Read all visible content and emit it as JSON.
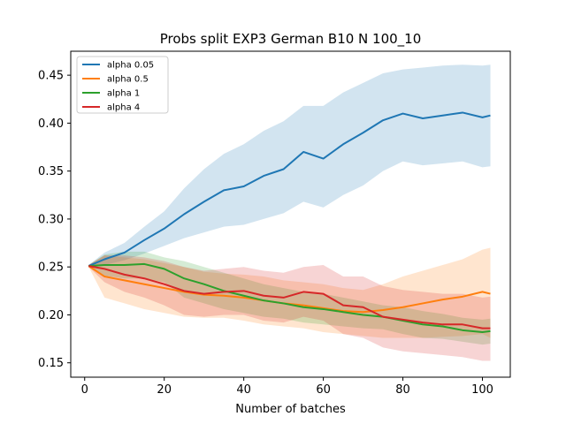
{
  "chart_data": {
    "type": "line",
    "title": "Probs split EXP3 German B10 N 100_10",
    "xlabel": "Number of batches",
    "ylabel": "",
    "xlim": [
      -3.5,
      107
    ],
    "ylim": [
      0.135,
      0.475
    ],
    "xticks": [
      0,
      20,
      40,
      60,
      80,
      100
    ],
    "yticks": [
      0.15,
      0.2,
      0.25,
      0.3,
      0.35,
      0.4,
      0.45
    ],
    "xtick_labels": [
      "0",
      "20",
      "40",
      "60",
      "80",
      "100"
    ],
    "ytick_labels": [
      "0.15",
      "0.20",
      "0.25",
      "0.30",
      "0.35",
      "0.40",
      "0.45"
    ],
    "grid": false,
    "legend_position": "top-left",
    "series": [
      {
        "name": "alpha 0.05",
        "color": "#1f77b4",
        "x": [
          1,
          5,
          10,
          15,
          20,
          25,
          30,
          35,
          40,
          45,
          50,
          55,
          60,
          65,
          70,
          75,
          80,
          85,
          90,
          95,
          100,
          102
        ],
        "mean": [
          0.251,
          0.258,
          0.265,
          0.278,
          0.29,
          0.305,
          0.318,
          0.33,
          0.334,
          0.345,
          0.352,
          0.37,
          0.363,
          0.378,
          0.39,
          0.403,
          0.41,
          0.405,
          0.408,
          0.411,
          0.406,
          0.408
        ],
        "upper": [
          0.252,
          0.265,
          0.275,
          0.292,
          0.308,
          0.332,
          0.352,
          0.368,
          0.378,
          0.392,
          0.402,
          0.418,
          0.418,
          0.432,
          0.442,
          0.452,
          0.456,
          0.458,
          0.46,
          0.461,
          0.46,
          0.461
        ],
        "lower": [
          0.25,
          0.252,
          0.257,
          0.264,
          0.272,
          0.28,
          0.286,
          0.292,
          0.294,
          0.3,
          0.306,
          0.318,
          0.312,
          0.325,
          0.335,
          0.35,
          0.36,
          0.356,
          0.358,
          0.36,
          0.354,
          0.355
        ]
      },
      {
        "name": "alpha 0.5",
        "color": "#ff7f0e",
        "x": [
          1,
          5,
          10,
          15,
          20,
          25,
          30,
          35,
          40,
          45,
          50,
          55,
          60,
          65,
          70,
          75,
          80,
          85,
          90,
          95,
          100,
          102
        ],
        "mean": [
          0.251,
          0.24,
          0.236,
          0.232,
          0.228,
          0.224,
          0.221,
          0.22,
          0.218,
          0.215,
          0.212,
          0.21,
          0.207,
          0.204,
          0.203,
          0.205,
          0.208,
          0.212,
          0.216,
          0.219,
          0.224,
          0.222
        ],
        "upper": [
          0.252,
          0.262,
          0.26,
          0.258,
          0.254,
          0.25,
          0.245,
          0.243,
          0.242,
          0.24,
          0.236,
          0.234,
          0.232,
          0.228,
          0.226,
          0.232,
          0.24,
          0.246,
          0.252,
          0.258,
          0.268,
          0.27
        ],
        "lower": [
          0.25,
          0.218,
          0.212,
          0.206,
          0.202,
          0.198,
          0.197,
          0.197,
          0.194,
          0.19,
          0.188,
          0.186,
          0.182,
          0.18,
          0.178,
          0.176,
          0.176,
          0.176,
          0.177,
          0.178,
          0.18,
          0.176
        ]
      },
      {
        "name": "alpha 1",
        "color": "#2ca02c",
        "x": [
          1,
          5,
          10,
          15,
          20,
          25,
          30,
          35,
          40,
          45,
          50,
          55,
          60,
          65,
          70,
          75,
          80,
          85,
          90,
          95,
          100,
          102
        ],
        "mean": [
          0.251,
          0.252,
          0.252,
          0.253,
          0.248,
          0.238,
          0.232,
          0.225,
          0.22,
          0.215,
          0.212,
          0.208,
          0.206,
          0.203,
          0.2,
          0.198,
          0.194,
          0.19,
          0.188,
          0.184,
          0.182,
          0.183
        ],
        "upper": [
          0.252,
          0.263,
          0.266,
          0.266,
          0.26,
          0.256,
          0.25,
          0.244,
          0.238,
          0.232,
          0.228,
          0.224,
          0.222,
          0.218,
          0.214,
          0.21,
          0.208,
          0.204,
          0.201,
          0.197,
          0.195,
          0.196
        ],
        "lower": [
          0.25,
          0.241,
          0.238,
          0.238,
          0.234,
          0.218,
          0.212,
          0.206,
          0.202,
          0.198,
          0.196,
          0.192,
          0.19,
          0.188,
          0.186,
          0.185,
          0.18,
          0.176,
          0.175,
          0.172,
          0.169,
          0.17
        ]
      },
      {
        "name": "alpha 4",
        "color": "#d62728",
        "x": [
          1,
          5,
          10,
          15,
          20,
          25,
          30,
          35,
          40,
          45,
          50,
          55,
          60,
          65,
          70,
          75,
          80,
          85,
          90,
          95,
          100,
          102
        ],
        "mean": [
          0.251,
          0.248,
          0.242,
          0.238,
          0.232,
          0.225,
          0.222,
          0.224,
          0.225,
          0.22,
          0.218,
          0.224,
          0.222,
          0.21,
          0.208,
          0.198,
          0.195,
          0.192,
          0.19,
          0.19,
          0.186,
          0.186
        ],
        "upper": [
          0.252,
          0.262,
          0.262,
          0.26,
          0.256,
          0.25,
          0.246,
          0.248,
          0.25,
          0.246,
          0.244,
          0.25,
          0.252,
          0.24,
          0.24,
          0.23,
          0.226,
          0.224,
          0.222,
          0.222,
          0.218,
          0.219
        ],
        "lower": [
          0.25,
          0.234,
          0.224,
          0.218,
          0.21,
          0.2,
          0.198,
          0.2,
          0.2,
          0.194,
          0.192,
          0.198,
          0.194,
          0.18,
          0.176,
          0.166,
          0.162,
          0.16,
          0.158,
          0.156,
          0.152,
          0.152
        ]
      }
    ]
  }
}
